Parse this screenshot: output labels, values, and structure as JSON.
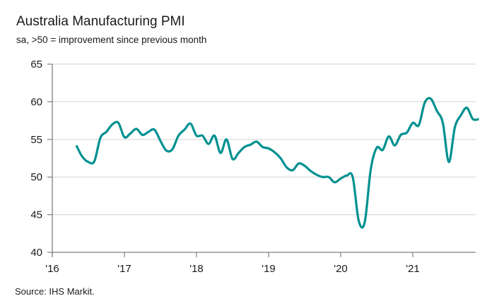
{
  "chart_data": {
    "type": "line",
    "title": "Australia Manufacturing PMI",
    "subtitle": "sa, >50 = improvement since previous month",
    "source": "Source: IHS Markit.",
    "xlabel": "",
    "ylabel": "",
    "ylim": [
      40,
      65
    ],
    "yticks": [
      40,
      45,
      50,
      55,
      60,
      65
    ],
    "xlim": [
      "2016-01",
      "2021-12"
    ],
    "xticks": [
      {
        "label": "'16",
        "month": "2016-01"
      },
      {
        "label": "'17",
        "month": "2017-01"
      },
      {
        "label": "'18",
        "month": "2018-01"
      },
      {
        "label": "'19",
        "month": "2019-01"
      },
      {
        "label": "'20",
        "month": "2020-01"
      },
      {
        "label": "'21",
        "month": "2021-01"
      }
    ],
    "grid": "horizontal",
    "line_color": "#009090",
    "series": [
      {
        "name": "Australia Manufacturing PMI",
        "start": "2016-05",
        "values": [
          54.2,
          52.7,
          52.0,
          52.1,
          55.2,
          56.0,
          57.0,
          57.2,
          55.3,
          55.8,
          56.4,
          55.6,
          56.0,
          56.3,
          54.8,
          53.5,
          53.7,
          55.5,
          56.3,
          57.1,
          55.5,
          55.5,
          54.4,
          55.5,
          53.2,
          55.0,
          52.4,
          53.2,
          54.0,
          54.3,
          54.7,
          54.0,
          53.8,
          53.3,
          52.5,
          51.3,
          50.9,
          51.8,
          51.5,
          50.8,
          50.3,
          50.0,
          50.0,
          49.3,
          49.8,
          50.2,
          50.0,
          44.2,
          44.0,
          51.0,
          53.9,
          53.6,
          55.4,
          54.2,
          55.6,
          55.9,
          57.2,
          56.9,
          59.9,
          60.4,
          58.8,
          57.2,
          52.0,
          56.6,
          58.2,
          59.2,
          57.7,
          57.7
        ]
      }
    ]
  }
}
